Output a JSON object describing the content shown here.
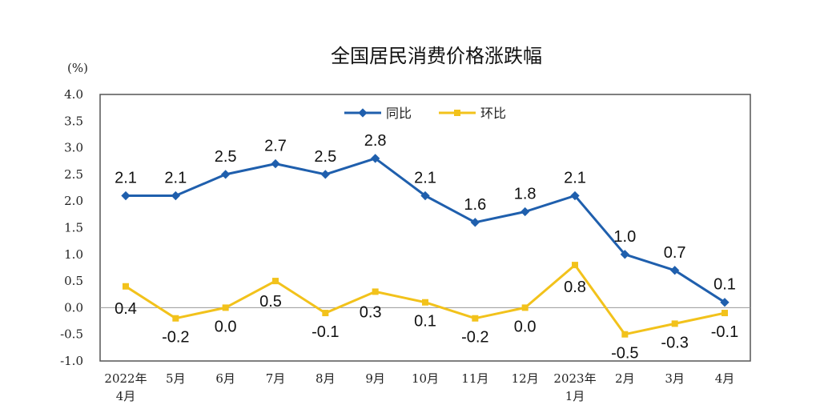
{
  "chart_data": {
    "type": "line",
    "title": "全国居民消费价格涨跌幅",
    "ylabel": "(%)",
    "ylim": [
      -1.0,
      4.0
    ],
    "yticks": [
      "4.0",
      "3.5",
      "3.0",
      "2.5",
      "2.0",
      "1.5",
      "1.0",
      "0.5",
      "0.0",
      "-0.5",
      "-1.0"
    ],
    "categories": [
      [
        "2022年",
        "4月"
      ],
      [
        "5月"
      ],
      [
        "6月"
      ],
      [
        "7月"
      ],
      [
        "8月"
      ],
      [
        "9月"
      ],
      [
        "10月"
      ],
      [
        "11月"
      ],
      [
        "12月"
      ],
      [
        "2023年",
        "1月"
      ],
      [
        "2月"
      ],
      [
        "3月"
      ],
      [
        "4月"
      ]
    ],
    "legend_position": "top-center",
    "series": [
      {
        "name": "同比",
        "color": "#1f5fad",
        "values": [
          2.1,
          2.1,
          2.5,
          2.7,
          2.5,
          2.8,
          2.1,
          1.6,
          1.8,
          2.1,
          1.0,
          0.7,
          0.1
        ],
        "labels": [
          "2.1",
          "2.1",
          "2.5",
          "2.7",
          "2.5",
          "2.8",
          "2.1",
          "1.6",
          "1.8",
          "2.1",
          "1.0",
          "0.7",
          "0.1"
        ]
      },
      {
        "name": "环比",
        "color": "#f2c21b",
        "values": [
          0.4,
          -0.2,
          0.0,
          0.5,
          -0.1,
          0.3,
          0.1,
          -0.2,
          0.0,
          0.8,
          -0.5,
          -0.3,
          -0.1
        ],
        "labels": [
          "0.4",
          "-0.2",
          "0.0",
          "0.5",
          "-0.1",
          "0.3",
          "0.1",
          "-0.2",
          "0.0",
          "0.8",
          "-0.5",
          "-0.3",
          "-0.1"
        ]
      }
    ]
  }
}
